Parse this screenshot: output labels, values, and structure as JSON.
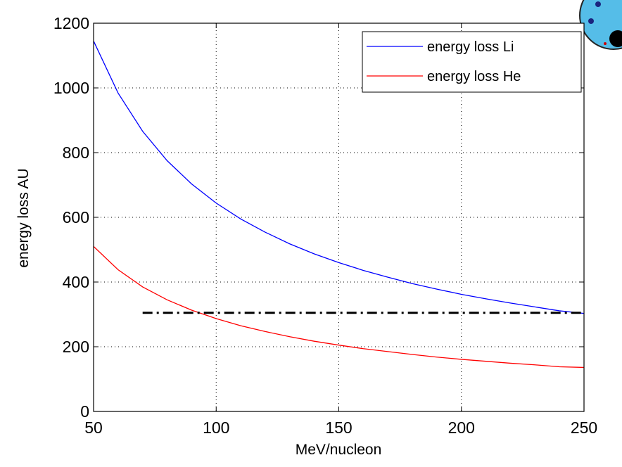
{
  "chart_data": {
    "type": "line",
    "xlabel": "MeV/nucleon",
    "ylabel": "energy loss AU",
    "x": [
      50,
      60,
      70,
      80,
      90,
      100,
      110,
      120,
      130,
      140,
      150,
      160,
      170,
      180,
      190,
      200,
      210,
      220,
      230,
      240,
      250
    ],
    "series": [
      {
        "name": "energy loss Li",
        "color": "#0000ff",
        "values": [
          1145,
          984,
          866,
          775,
          703,
          644,
          595,
          554,
          518,
          487,
          460,
          436,
          415,
          395,
          378,
          362,
          348,
          335,
          323,
          311,
          303
        ]
      },
      {
        "name": "energy loss He",
        "color": "#ff0000",
        "values": [
          510,
          438,
          385,
          345,
          313,
          287,
          265,
          247,
          231,
          217,
          205,
          194,
          185,
          176,
          168,
          161,
          155,
          149,
          144,
          138,
          136
        ]
      }
    ],
    "hline": {
      "value": 305,
      "xmin": 70,
      "xmax": 250,
      "color": "#000000"
    },
    "xlim": [
      50,
      250
    ],
    "ylim": [
      0,
      1200
    ],
    "xticks": [
      50,
      100,
      150,
      200,
      250
    ],
    "yticks": [
      0,
      200,
      400,
      600,
      800,
      1000,
      1200
    ],
    "grid": true,
    "legend": "upper right"
  }
}
